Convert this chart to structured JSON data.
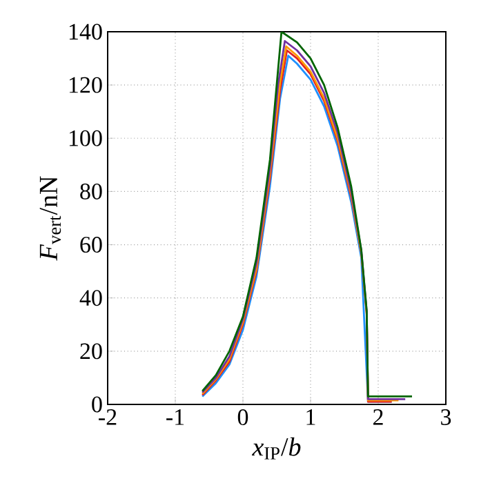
{
  "chart_data": {
    "type": "line",
    "xlabel": "*x*$_{IP}$/*b*",
    "ylabel": "*F*$_{vert}$/nN",
    "xlim": [
      -2,
      3
    ],
    "ylim": [
      0,
      140
    ],
    "xticks": [
      -2,
      -1,
      0,
      1,
      2,
      3
    ],
    "yticks": [
      0,
      20,
      40,
      60,
      80,
      100,
      120,
      140
    ],
    "grid": true,
    "line_style": "solid",
    "series": [
      {
        "color": "#1e90ff",
        "x": [
          -0.6,
          -0.4,
          -0.2,
          0,
          0.2,
          0.4,
          0.55,
          0.67,
          0.8,
          1.0,
          1.2,
          1.4,
          1.6,
          1.75,
          1.83,
          1.85,
          2.2
        ],
        "values": [
          3,
          8,
          15,
          28,
          48,
          82,
          115,
          131,
          128,
          122,
          112,
          97,
          76,
          55,
          null,
          1,
          1
        ]
      },
      {
        "color": "#e02020",
        "x": [
          -0.6,
          -0.4,
          -0.2,
          0,
          0.2,
          0.4,
          0.55,
          0.65,
          0.8,
          1.0,
          1.2,
          1.4,
          1.6,
          1.75,
          1.83,
          1.85,
          2.2
        ],
        "values": [
          3.5,
          9,
          16,
          30,
          50,
          85,
          118,
          133,
          130,
          124,
          114,
          99,
          78,
          57,
          34,
          1,
          1
        ]
      },
      {
        "color": "#ff9900",
        "x": [
          -0.6,
          -0.4,
          -0.2,
          0,
          0.2,
          0.4,
          0.55,
          0.64,
          0.8,
          1.0,
          1.2,
          1.4,
          1.6,
          1.75,
          1.83,
          1.85,
          2.3
        ],
        "values": [
          4,
          9.5,
          17,
          31,
          51,
          87,
          121,
          134.5,
          131,
          125,
          115,
          100,
          79,
          57,
          34,
          1.5,
          1.5
        ]
      },
      {
        "color": "#7030a0",
        "x": [
          -0.6,
          -0.4,
          -0.2,
          0,
          0.2,
          0.4,
          0.52,
          0.62,
          0.8,
          1.0,
          1.2,
          1.4,
          1.6,
          1.75,
          1.83,
          1.85,
          2.4
        ],
        "values": [
          4.5,
          10,
          18,
          32,
          53,
          89,
          120,
          136.5,
          133,
          127,
          117,
          102,
          80,
          58,
          35,
          2,
          2
        ]
      },
      {
        "color": "#006400",
        "x": [
          -0.6,
          -0.4,
          -0.2,
          0,
          0.2,
          0.4,
          0.57,
          0.8,
          1.0,
          1.2,
          1.4,
          1.6,
          1.75,
          1.83,
          1.85,
          2.5
        ],
        "values": [
          5,
          11,
          20,
          33,
          55,
          92,
          140,
          136,
          130,
          120,
          104,
          82,
          58,
          35,
          3,
          3
        ]
      }
    ]
  }
}
